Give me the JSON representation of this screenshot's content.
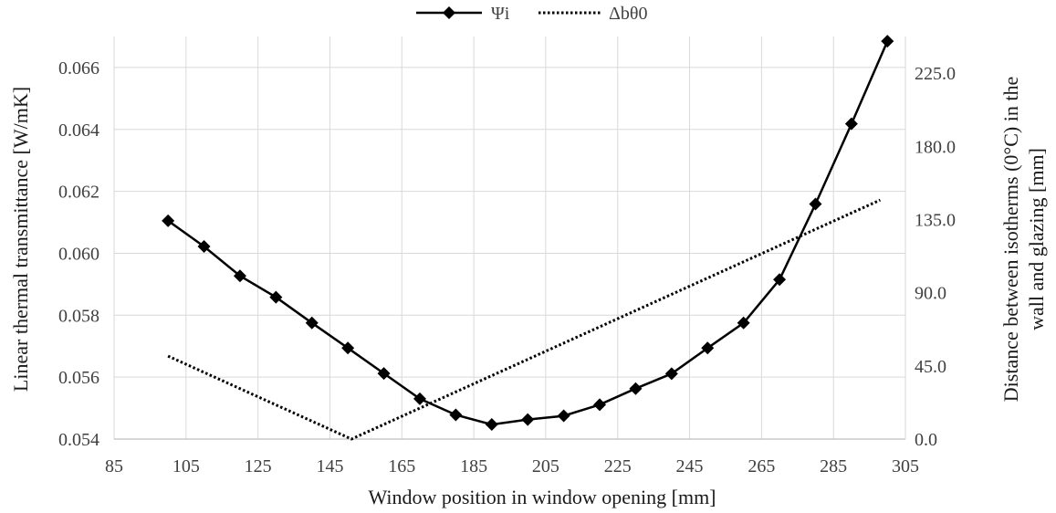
{
  "chart_data": {
    "type": "line",
    "title": "",
    "xlabel": "Window position in window opening [mm]",
    "ylabel_left": "Linear thermal transmittance [W/mK]",
    "ylabel_right_lines": [
      "Distance between isotherms (0°C) in the",
      "wall and glazing [mm]"
    ],
    "xlim": [
      85,
      305
    ],
    "x_ticks": [
      "85",
      "105",
      "125",
      "145",
      "165",
      "185",
      "205",
      "225",
      "245",
      "265",
      "285",
      "305"
    ],
    "ylim_left": [
      0.054,
      0.067
    ],
    "y_left_ticks": [
      "0.054",
      "0.056",
      "0.058",
      "0.060",
      "0.062",
      "0.064",
      "0.066"
    ],
    "ylim_right": [
      0,
      247.5
    ],
    "y_right_ticks": [
      "0.0",
      "45.0",
      "90.0",
      "135.0",
      "180.0",
      "225.0"
    ],
    "grid": true,
    "legend_position": "top-center",
    "series": [
      {
        "name": "Ψi",
        "axis": "left",
        "style": "solid-diamond",
        "color": "#000000",
        "x": [
          100,
          110,
          120,
          130,
          140,
          150,
          160,
          170,
          180,
          190,
          200,
          210,
          220,
          230,
          240,
          250,
          260,
          270,
          280,
          290,
          300
        ],
        "values": [
          0.06105,
          0.06022,
          0.05927,
          0.05858,
          0.05775,
          0.05694,
          0.05612,
          0.0553,
          0.05478,
          0.05447,
          0.05463,
          0.05475,
          0.05511,
          0.05563,
          0.05611,
          0.05694,
          0.05775,
          0.05915,
          0.06159,
          0.06418,
          0.06685
        ]
      },
      {
        "name": "Δbθ0",
        "axis": "right",
        "style": "dotted",
        "color": "#000000",
        "x": [
          100,
          151,
          298
        ],
        "values": [
          51,
          0,
          147
        ]
      }
    ]
  }
}
